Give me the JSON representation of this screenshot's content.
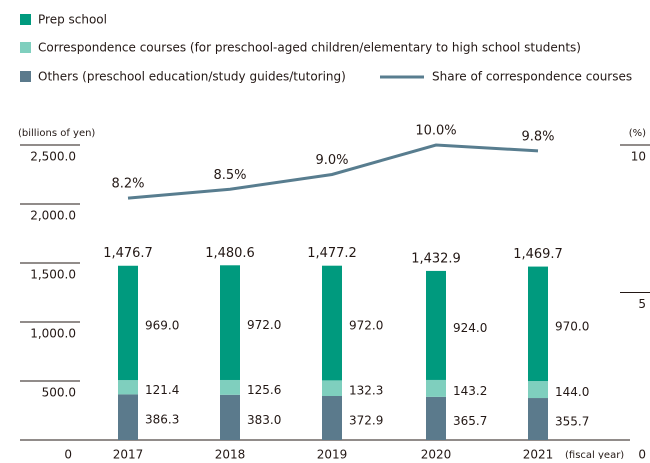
{
  "chart_data": {
    "type": "bar",
    "stacked": true,
    "y_label": "(billions of yen)",
    "y2_label": "(%)",
    "x_label": "(fiscal year)",
    "categories": [
      "2017",
      "2018",
      "2019",
      "2020",
      "2021"
    ],
    "series": [
      {
        "name": "Prep school",
        "color": "#009a7e",
        "values": [
          969.0,
          972.0,
          972.0,
          924.0,
          970.0
        ],
        "value_labels": [
          "969.0",
          "972.0",
          "972.0",
          "924.0",
          "970.0"
        ]
      },
      {
        "name": "Correspondence courses (for preschool-aged children/elementary to high school students)",
        "color": "#7fcfbe",
        "values": [
          121.4,
          125.6,
          132.3,
          143.2,
          144.0
        ],
        "value_labels": [
          "121.4",
          "125.6",
          "132.3",
          "143.2",
          "144.0"
        ]
      },
      {
        "name": "Others (preschool education/study guides/tutoring)",
        "color": "#5b7a8c",
        "values": [
          386.3,
          383.0,
          372.9,
          365.7,
          355.7
        ],
        "value_labels": [
          "386.3",
          "383.0",
          "372.9",
          "365.7",
          "355.7"
        ]
      },
      {
        "name": "Share of correspondence courses",
        "type": "line",
        "axis": "y2",
        "color": "#587d8f",
        "values": [
          8.2,
          8.5,
          9.0,
          10.0,
          9.8
        ],
        "value_labels": [
          "8.2%",
          "8.5%",
          "9.0%",
          "10.0%",
          "9.8%"
        ]
      }
    ],
    "totals": [
      1476.7,
      1480.6,
      1477.2,
      1432.9,
      1469.7
    ],
    "total_labels": [
      "1,476.7",
      "1,480.6",
      "1,477.2",
      "1,432.9",
      "1,469.7"
    ],
    "ylim": [
      0,
      2500
    ],
    "yticks": [
      0,
      {
        "value": 500,
        "label": "500.0"
      },
      {
        "value": 1000,
        "label": "1,000.0"
      },
      {
        "value": 1500,
        "label": "1,500.0"
      },
      {
        "value": 2000,
        "label": "2,000.0"
      },
      {
        "value": 2500,
        "label": "2,500.0"
      }
    ],
    "y2lim": [
      0,
      10
    ],
    "y2ticks": [
      0,
      5,
      10
    ]
  }
}
